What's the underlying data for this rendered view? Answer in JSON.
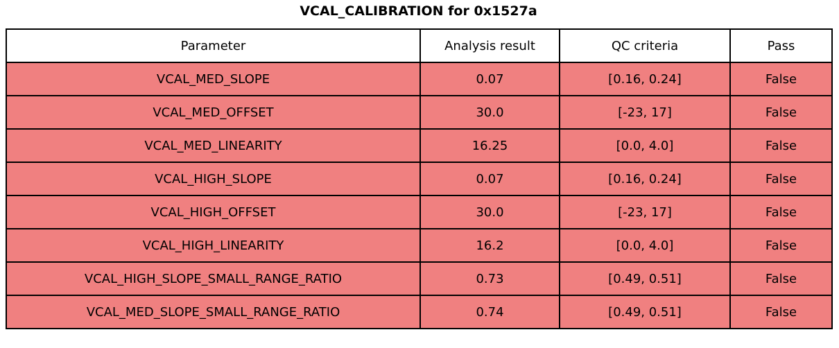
{
  "title": "VCAL_CALIBRATION for 0x1527a",
  "colors": {
    "fail_row": "#f08080",
    "header_bg": "#ffffff",
    "border": "#000000",
    "text": "#000000"
  },
  "chart_data": {
    "type": "table",
    "title": "VCAL_CALIBRATION for 0x1527a",
    "columns": [
      "Parameter",
      "Analysis result",
      "QC criteria",
      "Pass"
    ],
    "rows": [
      [
        "VCAL_MED_SLOPE",
        "0.07",
        "[0.16, 0.24]",
        "False"
      ],
      [
        "VCAL_MED_OFFSET",
        "30.0",
        "[-23, 17]",
        "False"
      ],
      [
        "VCAL_MED_LINEARITY",
        "16.25",
        "[0.0, 4.0]",
        "False"
      ],
      [
        "VCAL_HIGH_SLOPE",
        "0.07",
        "[0.16, 0.24]",
        "False"
      ],
      [
        "VCAL_HIGH_OFFSET",
        "30.0",
        "[-23, 17]",
        "False"
      ],
      [
        "VCAL_HIGH_LINEARITY",
        "16.2",
        "[0.0, 4.0]",
        "False"
      ],
      [
        "VCAL_HIGH_SLOPE_SMALL_RANGE_RATIO",
        "0.73",
        "[0.49, 0.51]",
        "False"
      ],
      [
        "VCAL_MED_SLOPE_SMALL_RANGE_RATIO",
        "0.74",
        "[0.49, 0.51]",
        "False"
      ]
    ],
    "all_rows_status": "fail",
    "layout": {
      "header_background": "#ffffff",
      "fail_row_background": "#f08080",
      "grid": true
    }
  }
}
